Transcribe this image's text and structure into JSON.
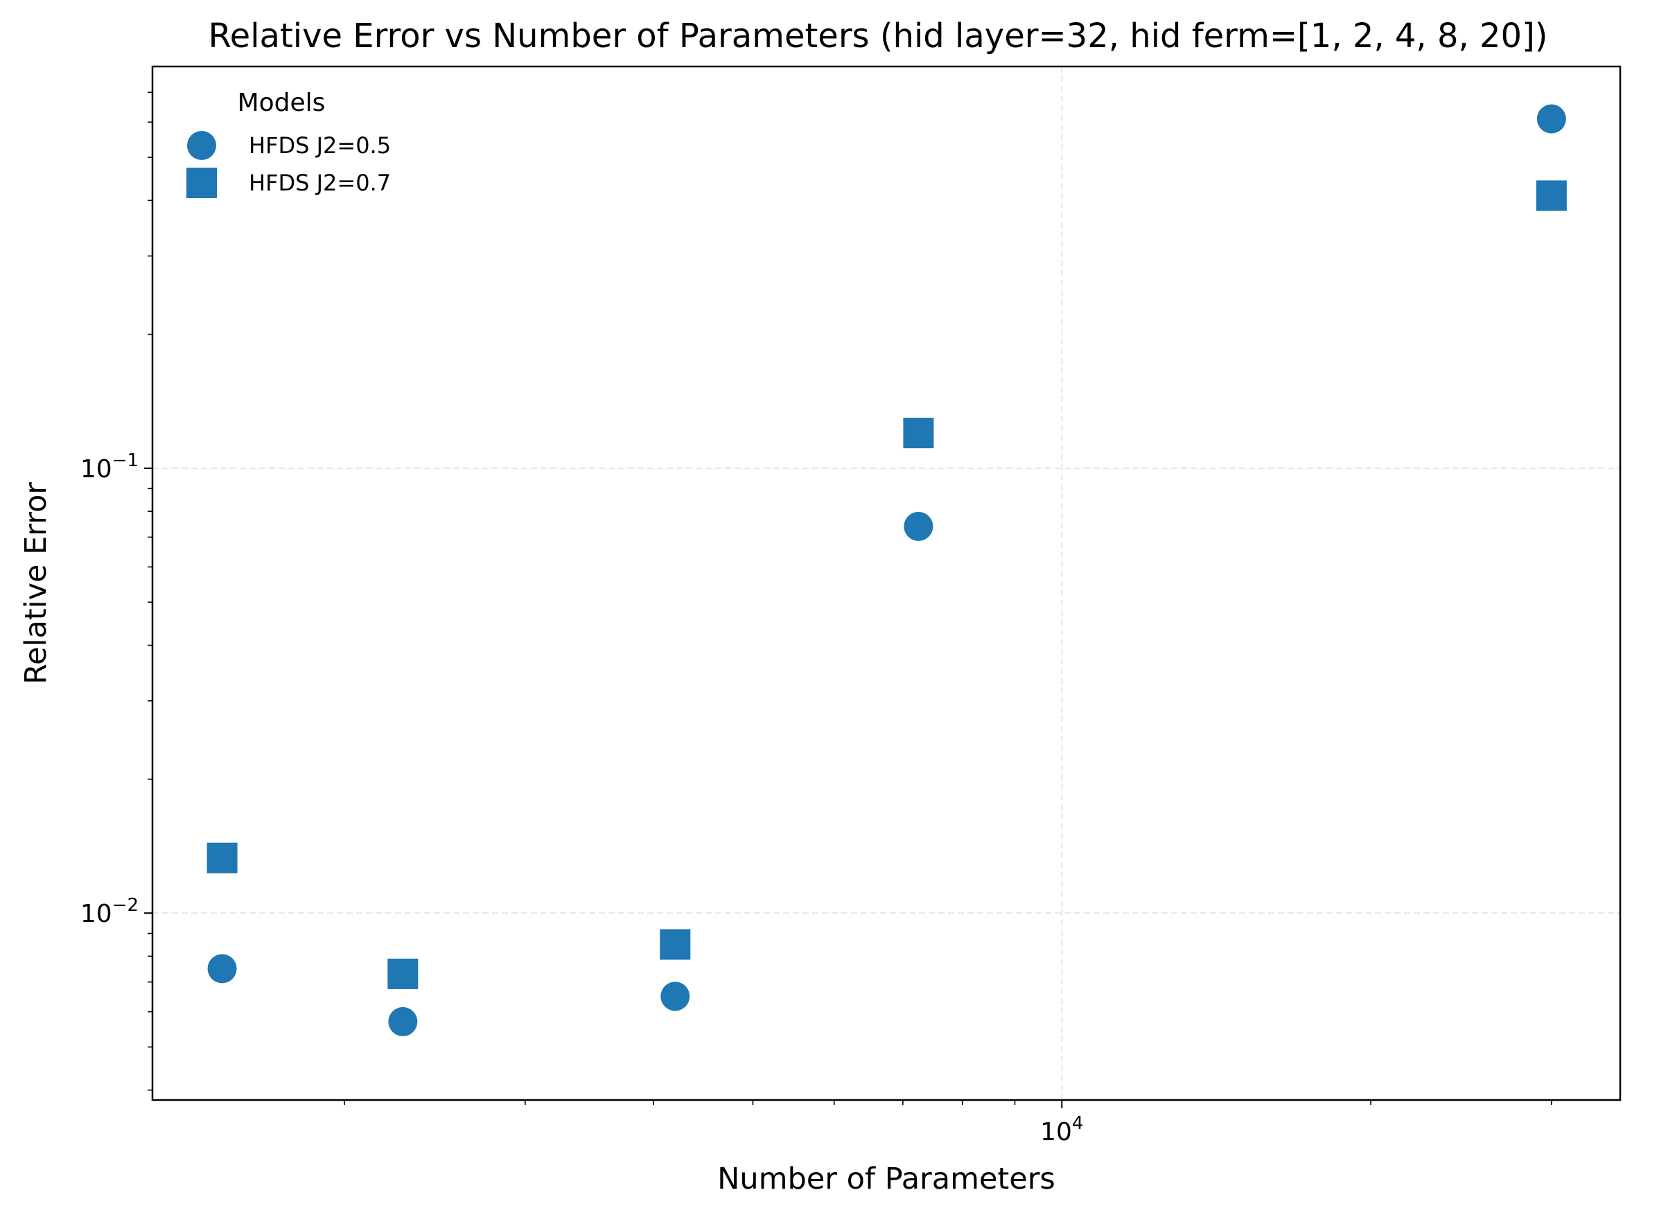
{
  "chart_data": {
    "type": "scatter",
    "title": "Relative Error vs Number of Parameters (hid layer=32, hid ferm=[1, 2, 4, 8, 20])",
    "xlabel": "Number of Parameters",
    "ylabel": "Relative Error",
    "xscale": "log",
    "yscale": "log",
    "xlim": [
      1300,
      35000
    ],
    "ylim": [
      0.0038,
      0.8
    ],
    "grid": true,
    "x_major_ticks": [
      {
        "value": 10000,
        "base": "10",
        "exp": "4"
      }
    ],
    "y_major_ticks": [
      {
        "value": 0.01,
        "base": "10",
        "exp": "−2"
      },
      {
        "value": 0.1,
        "base": "10",
        "exp": "−1"
      }
    ],
    "x_minor_ticks": [
      2000,
      3000,
      4000,
      5000,
      6000,
      7000,
      8000,
      9000,
      20000,
      30000
    ],
    "y_minor_ticks": [
      0.004,
      0.005,
      0.006,
      0.007,
      0.008,
      0.009,
      0.02,
      0.03,
      0.04,
      0.05,
      0.06,
      0.07,
      0.08,
      0.09,
      0.2,
      0.3,
      0.4,
      0.5,
      0.6,
      0.7
    ],
    "legend": {
      "title": "Models",
      "placement": "upper-left"
    },
    "series": [
      {
        "name": "HFDS J2=0.5",
        "marker": "circle",
        "color": "#1f77b4",
        "points": [
          {
            "x": 1520,
            "y": 0.0075
          },
          {
            "x": 2280,
            "y": 0.0057
          },
          {
            "x": 4200,
            "y": 0.0065
          },
          {
            "x": 7250,
            "y": 0.074
          },
          {
            "x": 30000,
            "y": 0.61
          }
        ]
      },
      {
        "name": "HFDS J2=0.7",
        "marker": "square",
        "color": "#1f77b4",
        "points": [
          {
            "x": 1520,
            "y": 0.0133
          },
          {
            "x": 2280,
            "y": 0.0073
          },
          {
            "x": 4200,
            "y": 0.0085
          },
          {
            "x": 7250,
            "y": 0.12
          },
          {
            "x": 30000,
            "y": 0.41
          }
        ]
      }
    ]
  }
}
